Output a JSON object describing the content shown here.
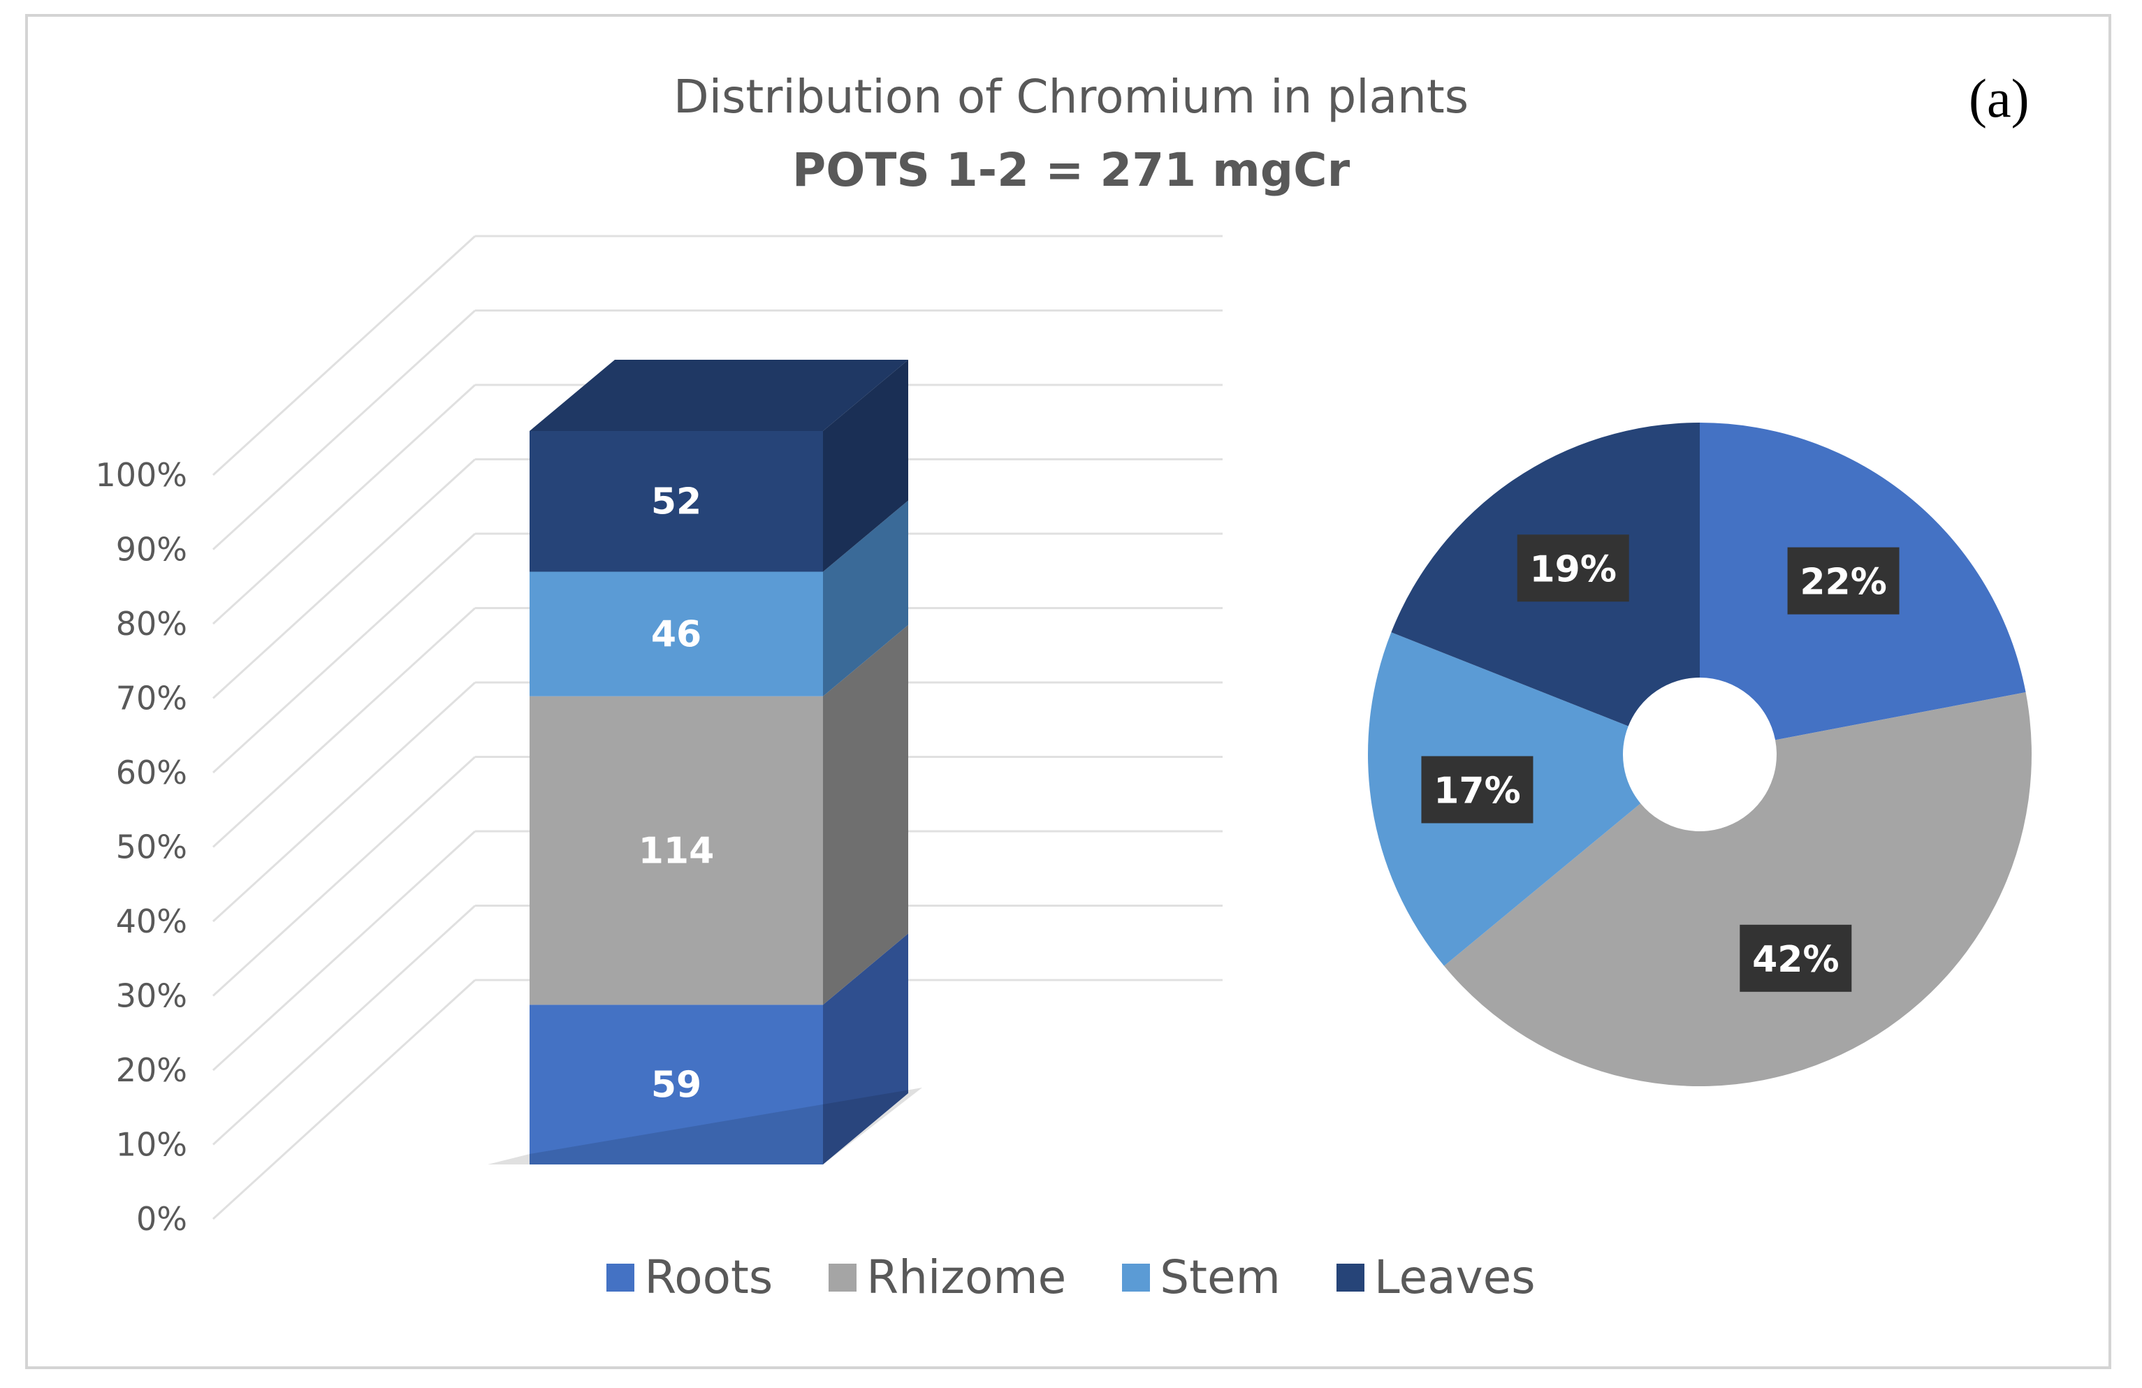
{
  "figure": {
    "panel_label": "(a)"
  },
  "chart_data": [
    {
      "type": "bar",
      "stacked": true,
      "percent": true,
      "title": "Distribution of Chromium in plants",
      "subtitle": "POTS 1-2 = 271 mgCr",
      "y_ticks": [
        "0%",
        "10%",
        "20%",
        "30%",
        "40%",
        "50%",
        "60%",
        "70%",
        "80%",
        "90%",
        "100%"
      ],
      "ylim": [
        0,
        100
      ],
      "grid": true,
      "series": [
        {
          "name": "Roots",
          "value": 59,
          "color": "#4472c4",
          "side_color": "#2f4f8f"
        },
        {
          "name": "Rhizome",
          "value": 114,
          "color": "#a5a5a5",
          "side_color": "#6f6f6f"
        },
        {
          "name": "Stem",
          "value": 46,
          "color": "#5b9bd5",
          "side_color": "#3a6a98"
        },
        {
          "name": "Leaves",
          "value": 52,
          "color": "#264478",
          "side_color": "#1a2f55"
        }
      ],
      "legend_position": "bottom"
    },
    {
      "type": "pie",
      "donut": true,
      "slices": [
        {
          "name": "Roots",
          "label": "22%",
          "value": 22,
          "color": "#4472c4"
        },
        {
          "name": "Rhizome",
          "label": "42%",
          "value": 42,
          "color": "#a5a5a5"
        },
        {
          "name": "Stem",
          "label": "17%",
          "value": 17,
          "color": "#5b9bd5"
        },
        {
          "name": "Leaves",
          "label": "19%",
          "value": 19,
          "color": "#264478"
        }
      ]
    }
  ],
  "legend": [
    {
      "label": "Roots",
      "color": "#4472c4"
    },
    {
      "label": "Rhizome",
      "color": "#a5a5a5"
    },
    {
      "label": "Stem",
      "color": "#5b9bd5"
    },
    {
      "label": "Leaves",
      "color": "#264478"
    }
  ]
}
